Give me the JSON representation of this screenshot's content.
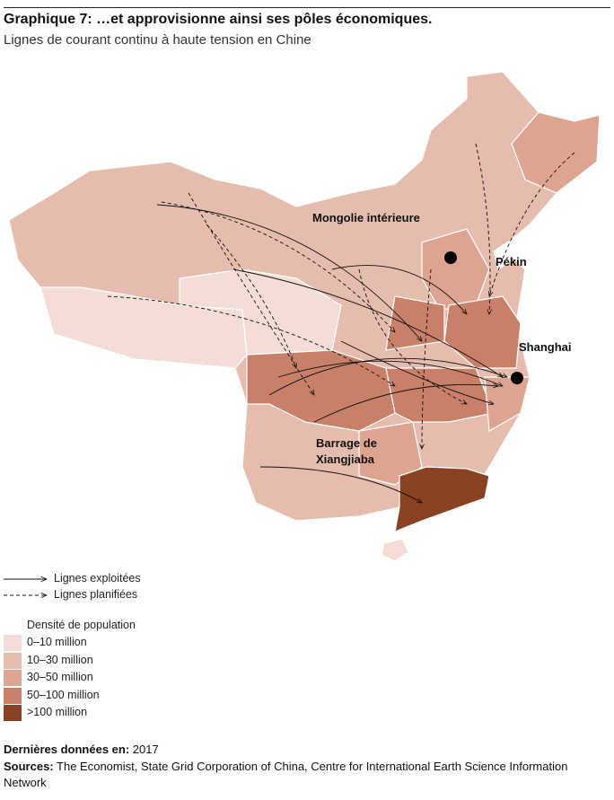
{
  "header": {
    "title": "Graphique 7: …et approvisionne ainsi ses pôles économiques.",
    "subtitle": "Lignes de courant continu à haute tension en Chine"
  },
  "map": {
    "labels": [
      {
        "text": "Mongolie intérieure"
      },
      {
        "text": "Pékin"
      },
      {
        "text": "Shanghai"
      },
      {
        "lines": [
          "Barrage de",
          "Xiangjiaba"
        ]
      }
    ]
  },
  "legend": {
    "lines": [
      "Lignes exploitées",
      "Lignes planifiées"
    ],
    "density": {
      "title": "Densité de population",
      "items": [
        {
          "label": "0–10 million",
          "color": "#f4ddd6"
        },
        {
          "label": "10–30 million",
          "color": "#e5bcae"
        },
        {
          "label": "30–50 million",
          "color": "#dda591"
        },
        {
          "label": "50–100 million",
          "color": "#c88068"
        },
        {
          "label": ">100 million",
          "color": "#8b4222"
        }
      ]
    }
  },
  "footer": {
    "date_label": "Dernières données en:",
    "date": "2017",
    "sources_label": "Sources:",
    "sources": "The Economist, State Grid Corporation of China, Centre for International Earth Science Information Network"
  }
}
